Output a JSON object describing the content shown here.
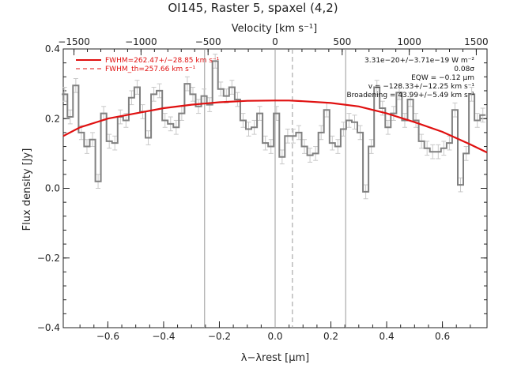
{
  "chart_data": {
    "type": "line",
    "title": "OI145, Raster 5, spaxel (4,2)",
    "xlabel": "λ−λrest [μm]",
    "ylabel": "Flux density [Jy]",
    "top_xlabel": "Velocity [km s⁻¹]",
    "xlim": [
      -0.76,
      0.76
    ],
    "ylim": [
      -0.4,
      0.4
    ],
    "top_xlim": [
      -1580,
      1580
    ],
    "x_ticks": [
      -0.6,
      -0.4,
      -0.2,
      0.0,
      0.2,
      0.4,
      0.6
    ],
    "x_tick_labels": [
      "−0.6",
      "−0.4",
      "−0.2",
      "0.0",
      "0.2",
      "0.4",
      "0.6"
    ],
    "y_ticks": [
      -0.4,
      -0.2,
      0.0,
      0.2,
      0.4
    ],
    "y_tick_labels": [
      "−0.4",
      "−0.2",
      "0.0",
      "0.2",
      "0.4"
    ],
    "top_ticks": [
      -1500,
      -1000,
      -500,
      0,
      500,
      1000,
      1500
    ],
    "top_tick_labels": [
      "−1500",
      "−1000",
      "−500",
      "0",
      "500",
      "1000",
      "1500"
    ],
    "series": [
      {
        "name": "spectrum",
        "kind": "step",
        "color": "#808080",
        "x": [
          -0.755,
          -0.735,
          -0.715,
          -0.695,
          -0.675,
          -0.655,
          -0.635,
          -0.615,
          -0.595,
          -0.575,
          -0.555,
          -0.535,
          -0.515,
          -0.495,
          -0.475,
          -0.455,
          -0.435,
          -0.415,
          -0.395,
          -0.375,
          -0.355,
          -0.335,
          -0.315,
          -0.295,
          -0.275,
          -0.255,
          -0.235,
          -0.215,
          -0.195,
          -0.175,
          -0.155,
          -0.135,
          -0.115,
          -0.095,
          -0.075,
          -0.055,
          -0.035,
          -0.015,
          0.005,
          0.025,
          0.045,
          0.065,
          0.085,
          0.105,
          0.125,
          0.145,
          0.165,
          0.185,
          0.205,
          0.225,
          0.245,
          0.265,
          0.285,
          0.305,
          0.325,
          0.345,
          0.365,
          0.385,
          0.405,
          0.425,
          0.445,
          0.465,
          0.485,
          0.505,
          0.525,
          0.545,
          0.565,
          0.585,
          0.605,
          0.625,
          0.645,
          0.665,
          0.685,
          0.705,
          0.725,
          0.745
        ],
        "y": [
          0.27,
          0.205,
          0.295,
          0.16,
          0.12,
          0.14,
          0.02,
          0.215,
          0.135,
          0.13,
          0.205,
          0.195,
          0.26,
          0.29,
          0.22,
          0.145,
          0.27,
          0.28,
          0.195,
          0.185,
          0.175,
          0.215,
          0.3,
          0.27,
          0.235,
          0.265,
          0.24,
          0.365,
          0.285,
          0.265,
          0.29,
          0.255,
          0.195,
          0.17,
          0.175,
          0.215,
          0.13,
          0.12,
          0.215,
          0.09,
          0.15,
          0.15,
          0.16,
          0.12,
          0.095,
          0.1,
          0.16,
          0.225,
          0.13,
          0.12,
          0.17,
          0.195,
          0.19,
          0.16,
          -0.01,
          0.12,
          0.29,
          0.23,
          0.175,
          0.215,
          0.275,
          0.195,
          0.255,
          0.195,
          0.135,
          0.115,
          0.105,
          0.105,
          0.115,
          0.13,
          0.225,
          0.01,
          0.1,
          0.27,
          0.195,
          0.21
        ],
        "yerr": 0.02
      },
      {
        "name": "FWHM=262.47+/−28.85 km s⁻¹",
        "kind": "line",
        "color": "#e01010",
        "x": [
          -0.76,
          -0.7,
          -0.6,
          -0.5,
          -0.4,
          -0.3,
          -0.2,
          -0.1,
          0.0,
          0.05,
          0.1,
          0.2,
          0.3,
          0.4,
          0.5,
          0.6,
          0.7,
          0.76
        ],
        "y": [
          0.15,
          0.175,
          0.2,
          0.215,
          0.23,
          0.24,
          0.247,
          0.251,
          0.252,
          0.252,
          0.25,
          0.245,
          0.235,
          0.215,
          0.19,
          0.162,
          0.126,
          0.103
        ]
      }
    ],
    "vlines": [
      {
        "x": -0.253,
        "style": "solid"
      },
      {
        "x": 0.0,
        "style": "solid"
      },
      {
        "x": 0.062,
        "style": "dashed"
      },
      {
        "x": 0.253,
        "style": "solid"
      }
    ],
    "legend": {
      "placement": "top-left",
      "entries": [
        {
          "label": "FWHM=262.47+/−28.85 km s⁻¹",
          "style": "solid",
          "color": "#e01010"
        },
        {
          "label": "FWHM_th=257.66 km s⁻¹",
          "style": "dashed",
          "color": "#e01010"
        }
      ]
    },
    "annotations": [
      "3.31e−20+/−3.71e−19 W m⁻²",
      "0.08σ",
      "EQW = −0.12 μm",
      "v = −128.33+/−12.25 km s⁻¹",
      "Broadening = 43.99+/−5.49 km s⁻¹"
    ],
    "grid": false
  }
}
